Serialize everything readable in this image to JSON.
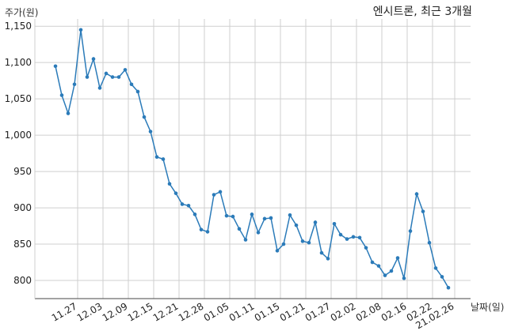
{
  "chart_data": {
    "type": "line",
    "title": "엔시트론, 최근 3개월",
    "ylabel": "주가(원)",
    "xlabel": "날짜(일)",
    "ylim": [
      775,
      1160
    ],
    "y_ticks": [
      800,
      850,
      900,
      950,
      1000,
      1050,
      1100,
      1150
    ],
    "y_tick_labels": [
      "800",
      "850",
      "900",
      "950",
      "1,000",
      "1,050",
      "1,100",
      "1,150"
    ],
    "x_tick_labels": [
      {
        "label": "11.27",
        "index": 3.5
      },
      {
        "label": "12.03",
        "index": 7.5
      },
      {
        "label": "12.09",
        "index": 11.5
      },
      {
        "label": "12.15",
        "index": 15.5
      },
      {
        "label": "12.21",
        "index": 19.5
      },
      {
        "label": "12.28",
        "index": 23.5
      },
      {
        "label": "01.05",
        "index": 27.5
      },
      {
        "label": "01.11",
        "index": 31.5
      },
      {
        "label": "01.15",
        "index": 35.5
      },
      {
        "label": "01.21",
        "index": 39.5
      },
      {
        "label": "01.27",
        "index": 43.5
      },
      {
        "label": "02.02",
        "index": 47.5
      },
      {
        "label": "02.08",
        "index": 51.5
      },
      {
        "label": "02.16",
        "index": 55.5
      },
      {
        "label": "02.22",
        "index": 59.5
      },
      {
        "label": "21.02.26",
        "index": 63
      }
    ],
    "grid": true,
    "color": "#2b7bb9",
    "series": [
      {
        "values": [
          1095,
          1055,
          1030,
          1070,
          1145,
          1080,
          1105,
          1065,
          1085,
          1080,
          1080,
          1090,
          1070,
          1060,
          1025,
          1005,
          970,
          967,
          933,
          920,
          905,
          903,
          891,
          870,
          867,
          918,
          922,
          889,
          888,
          871,
          856,
          891,
          866,
          885,
          886,
          841,
          850,
          890,
          876,
          854,
          852,
          880,
          838,
          830,
          878,
          863,
          857,
          860,
          859,
          845,
          825,
          820,
          807,
          813,
          831,
          803,
          868,
          919,
          895,
          852,
          817,
          805,
          790
        ]
      }
    ]
  }
}
